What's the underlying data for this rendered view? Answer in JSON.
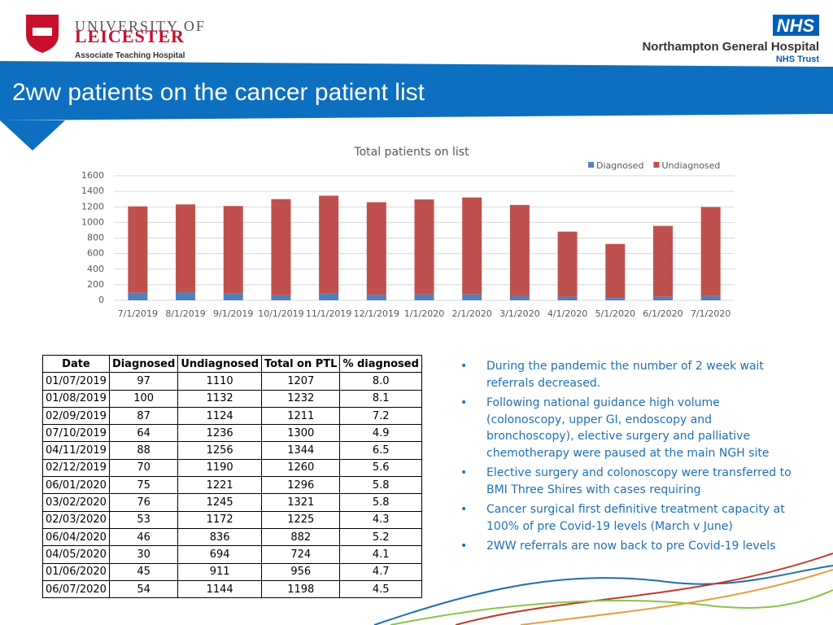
{
  "logos": {
    "university_line1": "UNIVERSITY OF",
    "university_line2": "LEICESTER",
    "university_line3": "Associate Teaching Hospital",
    "nhs": "NHS",
    "hospital": "Northampton General Hospital",
    "trust": "NHS Trust"
  },
  "title": "2ww patients on the cancer patient list",
  "chart_data": {
    "type": "bar",
    "stacked": true,
    "title": "Total patients on list",
    "categories": [
      "7/1/2019",
      "8/1/2019",
      "9/1/2019",
      "10/1/2019",
      "11/1/2019",
      "12/1/2019",
      "1/1/2020",
      "2/1/2020",
      "3/1/2020",
      "4/1/2020",
      "5/1/2020",
      "6/1/2020",
      "7/1/2020"
    ],
    "series": [
      {
        "name": "Diagnosed",
        "color": "#4f81bd",
        "values": [
          97,
          100,
          87,
          64,
          88,
          70,
          75,
          76,
          53,
          46,
          30,
          45,
          54
        ]
      },
      {
        "name": "Undiagnosed",
        "color": "#c0504d",
        "values": [
          1110,
          1132,
          1124,
          1236,
          1256,
          1190,
          1221,
          1245,
          1172,
          836,
          694,
          911,
          1144
        ]
      }
    ],
    "ylim": [
      0,
      1600
    ],
    "yticks": [
      0,
      200,
      400,
      600,
      800,
      1000,
      1200,
      1400,
      1600
    ],
    "grid": true,
    "legend": "top-right"
  },
  "table": {
    "header": [
      "Date",
      "Diagnosed",
      "Undiagnosed",
      "Total on PTL",
      "% diagnosed"
    ],
    "rows": [
      [
        "01/07/2019",
        "97",
        "1110",
        "1207",
        "8.0"
      ],
      [
        "01/08/2019",
        "100",
        "1132",
        "1232",
        "8.1"
      ],
      [
        "02/09/2019",
        "87",
        "1124",
        "1211",
        "7.2"
      ],
      [
        "07/10/2019",
        "64",
        "1236",
        "1300",
        "4.9"
      ],
      [
        "04/11/2019",
        "88",
        "1256",
        "1344",
        "6.5"
      ],
      [
        "02/12/2019",
        "70",
        "1190",
        "1260",
        "5.6"
      ],
      [
        "06/01/2020",
        "75",
        "1221",
        "1296",
        "5.8"
      ],
      [
        "03/02/2020",
        "76",
        "1245",
        "1321",
        "5.8"
      ],
      [
        "02/03/2020",
        "53",
        "1172",
        "1225",
        "4.3"
      ],
      [
        "06/04/2020",
        "46",
        "836",
        "882",
        "5.2"
      ],
      [
        "04/05/2020",
        "30",
        "694",
        "724",
        "4.1"
      ],
      [
        "01/06/2020",
        "45",
        "911",
        "956",
        "4.7"
      ],
      [
        "06/07/2020",
        "54",
        "1144",
        "1198",
        "4.5"
      ]
    ]
  },
  "bullets": {
    "marker": "•",
    "items": [
      "During the pandemic the number of 2 week wait referrals decreased.",
      "Following national guidance high volume (colonoscopy, upper GI, endoscopy and bronchoscopy), elective surgery and palliative chemotherapy were paused at the main NGH site",
      "Elective surgery and colonoscopy were transferred to BMI Three Shires with cases requiring",
      "Cancer surgical first definitive treatment capacity at 100% of pre Covid-19 levels (March v June)",
      "2WW referrals are now back to pre Covid-19 levels"
    ]
  }
}
